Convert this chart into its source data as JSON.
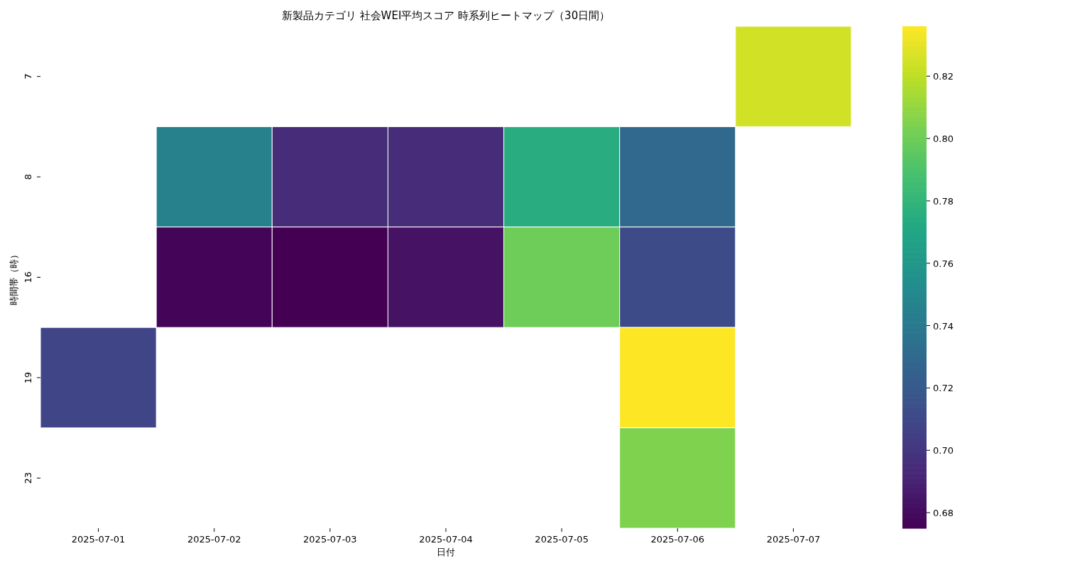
{
  "chart_data": {
    "type": "heatmap",
    "title": "新製品カテゴリ 社会WEI平均スコア 時系列ヒートマップ（30日間）",
    "xlabel": "日付",
    "ylabel": "時間帯（時）",
    "categories": [
      "2025-07-01",
      "2025-07-02",
      "2025-07-03",
      "2025-07-04",
      "2025-07-05",
      "2025-07-06",
      "2025-07-07"
    ],
    "y_categories": [
      "7",
      "8",
      "16",
      "19",
      "23"
    ],
    "cells": [
      [
        null,
        null,
        null,
        null,
        null,
        null,
        0.825
      ],
      [
        null,
        0.745,
        0.695,
        0.695,
        0.775,
        0.73,
        null
      ],
      [
        null,
        0.677,
        0.675,
        0.683,
        0.8,
        0.712,
        null
      ],
      [
        0.708,
        null,
        null,
        null,
        null,
        0.836,
        null
      ],
      [
        null,
        null,
        null,
        null,
        null,
        0.805,
        null
      ]
    ],
    "clim": [
      0.675,
      0.836
    ],
    "cticks": [
      0.68,
      {
        "value": 0.7,
        "label": "0.70"
      },
      0.72,
      0.74,
      0.76,
      0.78,
      {
        "value": 0.8,
        "label": "0.80"
      },
      0.82
    ]
  }
}
